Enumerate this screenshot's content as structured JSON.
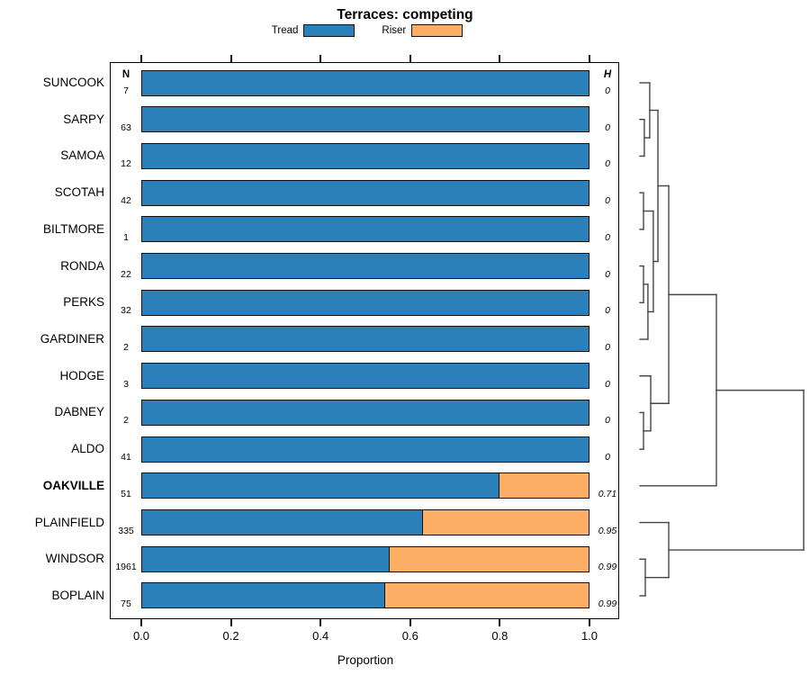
{
  "chart_data": {
    "type": "bar",
    "orientation": "horizontal-stacked",
    "title": "Terraces: competing",
    "xlabel": "Proportion",
    "xlim": [
      0,
      1
    ],
    "x_ticks": [
      "0.0",
      "0.2",
      "0.4",
      "0.6",
      "0.8",
      "1.0"
    ],
    "x_tick_values": [
      0,
      0.2,
      0.4,
      0.6,
      0.8,
      1.0
    ],
    "legend": [
      {
        "label": "Tread",
        "color": "#2C80B9"
      },
      {
        "label": "Riser",
        "color": "#FCAE65"
      }
    ],
    "columns": {
      "n_label": "N",
      "h_label": "H"
    },
    "series_names": [
      "Tread",
      "Riser"
    ],
    "rows": [
      {
        "name": "SUNCOOK",
        "n": "7",
        "tread": 1.0,
        "riser": 0.0,
        "shannon_h": "0",
        "bold": false
      },
      {
        "name": "SARPY",
        "n": "63",
        "tread": 1.0,
        "riser": 0.0,
        "shannon_h": "0",
        "bold": false
      },
      {
        "name": "SAMOA",
        "n": "12",
        "tread": 1.0,
        "riser": 0.0,
        "shannon_h": "0",
        "bold": false
      },
      {
        "name": "SCOTAH",
        "n": "42",
        "tread": 1.0,
        "riser": 0.0,
        "shannon_h": "0",
        "bold": false
      },
      {
        "name": "BILTMORE",
        "n": "1",
        "tread": 1.0,
        "riser": 0.0,
        "shannon_h": "0",
        "bold": false
      },
      {
        "name": "RONDA",
        "n": "22",
        "tread": 1.0,
        "riser": 0.0,
        "shannon_h": "0",
        "bold": false
      },
      {
        "name": "PERKS",
        "n": "32",
        "tread": 1.0,
        "riser": 0.0,
        "shannon_h": "0",
        "bold": false
      },
      {
        "name": "GARDINER",
        "n": "2",
        "tread": 1.0,
        "riser": 0.0,
        "shannon_h": "0",
        "bold": false
      },
      {
        "name": "HODGE",
        "n": "3",
        "tread": 1.0,
        "riser": 0.0,
        "shannon_h": "0",
        "bold": false
      },
      {
        "name": "DABNEY",
        "n": "2",
        "tread": 1.0,
        "riser": 0.0,
        "shannon_h": "0",
        "bold": false
      },
      {
        "name": "ALDO",
        "n": "41",
        "tread": 1.0,
        "riser": 0.0,
        "shannon_h": "0",
        "bold": false
      },
      {
        "name": "OAKVILLE",
        "n": "51",
        "tread": 0.8,
        "riser": 0.2,
        "shannon_h": "0.71",
        "bold": true
      },
      {
        "name": "PLAINFIELD",
        "n": "335",
        "tread": 0.63,
        "riser": 0.37,
        "shannon_h": "0.95",
        "bold": false
      },
      {
        "name": "WINDSOR",
        "n": "1961",
        "tread": 0.555,
        "riser": 0.445,
        "shannon_h": "0.99",
        "bold": false
      },
      {
        "name": "BOPLAIN",
        "n": "75",
        "tread": 0.545,
        "riser": 0.455,
        "shannon_h": "0.99",
        "bold": false
      }
    ],
    "dendrogram": {
      "h": 1.0,
      "children": [
        {
          "h": 0.467,
          "children": [
            {
              "h": 0.176,
              "children": [
                {
                  "h": 0.11,
                  "children": [
                    {
                      "h": 0.06,
                      "children": [
                        {
                          "leaf": 0
                        },
                        {
                          "h": 0.027,
                          "children": [
                            {
                              "leaf": 1
                            },
                            {
                              "leaf": 2
                            }
                          ]
                        }
                      ]
                    },
                    {
                      "h": 0.082,
                      "children": [
                        {
                          "h": 0.022,
                          "children": [
                            {
                              "leaf": 3
                            },
                            {
                              "leaf": 4
                            }
                          ]
                        },
                        {
                          "h": 0.049,
                          "children": [
                            {
                              "h": 0.022,
                              "children": [
                                {
                                  "leaf": 5
                                },
                                {
                                  "leaf": 6
                                }
                              ]
                            },
                            {
                              "leaf": 7
                            }
                          ]
                        }
                      ]
                    }
                  ]
                },
                {
                  "h": 0.066,
                  "children": [
                    {
                      "leaf": 8
                    },
                    {
                      "h": 0.022,
                      "children": [
                        {
                          "leaf": 9
                        },
                        {
                          "leaf": 10
                        }
                      ]
                    }
                  ]
                }
              ]
            },
            {
              "leaf": 11
            }
          ]
        },
        {
          "h": 0.176,
          "children": [
            {
              "leaf": 12
            },
            {
              "h": 0.033,
              "children": [
                {
                  "leaf": 13
                },
                {
                  "leaf": 14
                }
              ]
            }
          ]
        }
      ]
    }
  }
}
